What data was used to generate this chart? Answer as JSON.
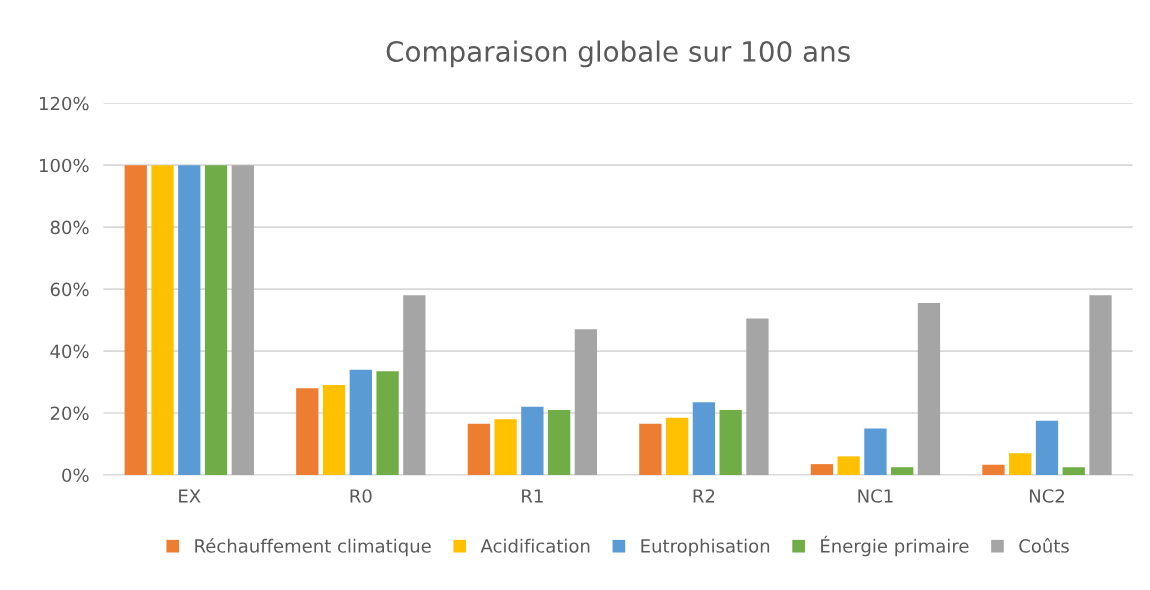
{
  "chart_data": {
    "type": "bar",
    "title": "Comparaison globale sur 100 ans",
    "categories": [
      "EX",
      "R0",
      "R1",
      "R2",
      "NC1",
      "NC2"
    ],
    "series": [
      {
        "name": "Réchauffement climatique",
        "color": "#ed7d31",
        "values": [
          100,
          28,
          16.5,
          16.5,
          3.5,
          3.3
        ]
      },
      {
        "name": "Acidification",
        "color": "#ffc000",
        "values": [
          100,
          29,
          18,
          18.5,
          6,
          7
        ]
      },
      {
        "name": "Eutrophisation",
        "color": "#5b9bd5",
        "values": [
          100,
          34,
          22,
          23.5,
          15,
          17.5
        ]
      },
      {
        "name": "Énergie primaire",
        "color": "#70ad47",
        "values": [
          100,
          33.5,
          21,
          21,
          2.5,
          2.5
        ]
      },
      {
        "name": "Coûts",
        "color": "#a5a5a5",
        "values": [
          100,
          58,
          47,
          50.5,
          55.5,
          58
        ]
      }
    ],
    "ylim": [
      0,
      120
    ],
    "yticks": [
      {
        "value": 0,
        "label": "0%"
      },
      {
        "value": 20,
        "label": "20%"
      },
      {
        "value": 40,
        "label": "40%"
      },
      {
        "value": 60,
        "label": "60%"
      },
      {
        "value": 80,
        "label": "80%"
      },
      {
        "value": 100,
        "label": "100%"
      },
      {
        "value": 120,
        "label": "120%"
      }
    ],
    "grid": "y",
    "legend": "bottom"
  }
}
